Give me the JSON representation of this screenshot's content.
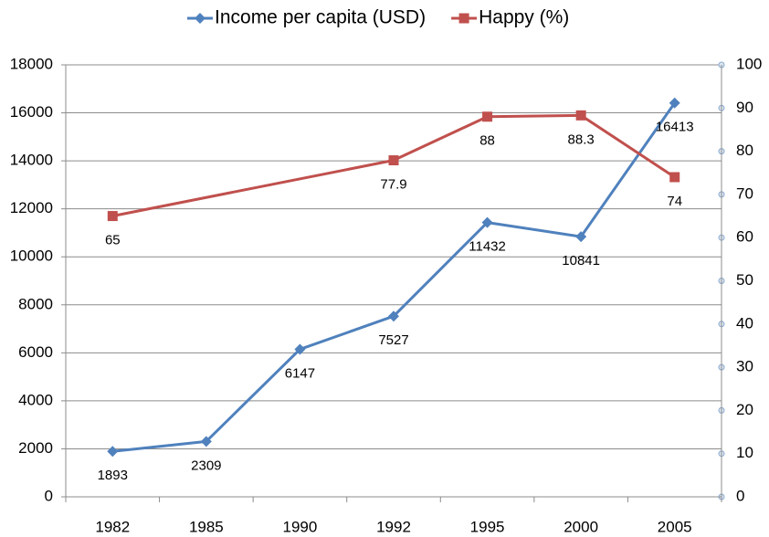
{
  "chart_data": {
    "type": "line",
    "categories": [
      "1982",
      "1985",
      "1990",
      "1992",
      "1995",
      "2000",
      "2005"
    ],
    "series": [
      {
        "name": "Income per capita (USD)",
        "color": "#4f81bd",
        "values": [
          1893,
          2309,
          6147,
          7527,
          11432,
          10841,
          16413
        ]
      },
      {
        "name": "Happy (%)",
        "color": "#c0504d",
        "axis": "y2",
        "values": [
          65,
          null,
          null,
          77.9,
          88,
          88.3,
          74
        ]
      }
    ],
    "ylim": [
      0,
      18000
    ],
    "yticks": [
      0,
      2000,
      4000,
      6000,
      8000,
      10000,
      12000,
      14000,
      16000,
      18000
    ],
    "y2lim": [
      0,
      100
    ],
    "y2ticks": [
      0,
      10,
      20,
      30,
      40,
      50,
      60,
      70,
      80,
      90,
      100
    ],
    "grid": true,
    "legend": "top"
  }
}
